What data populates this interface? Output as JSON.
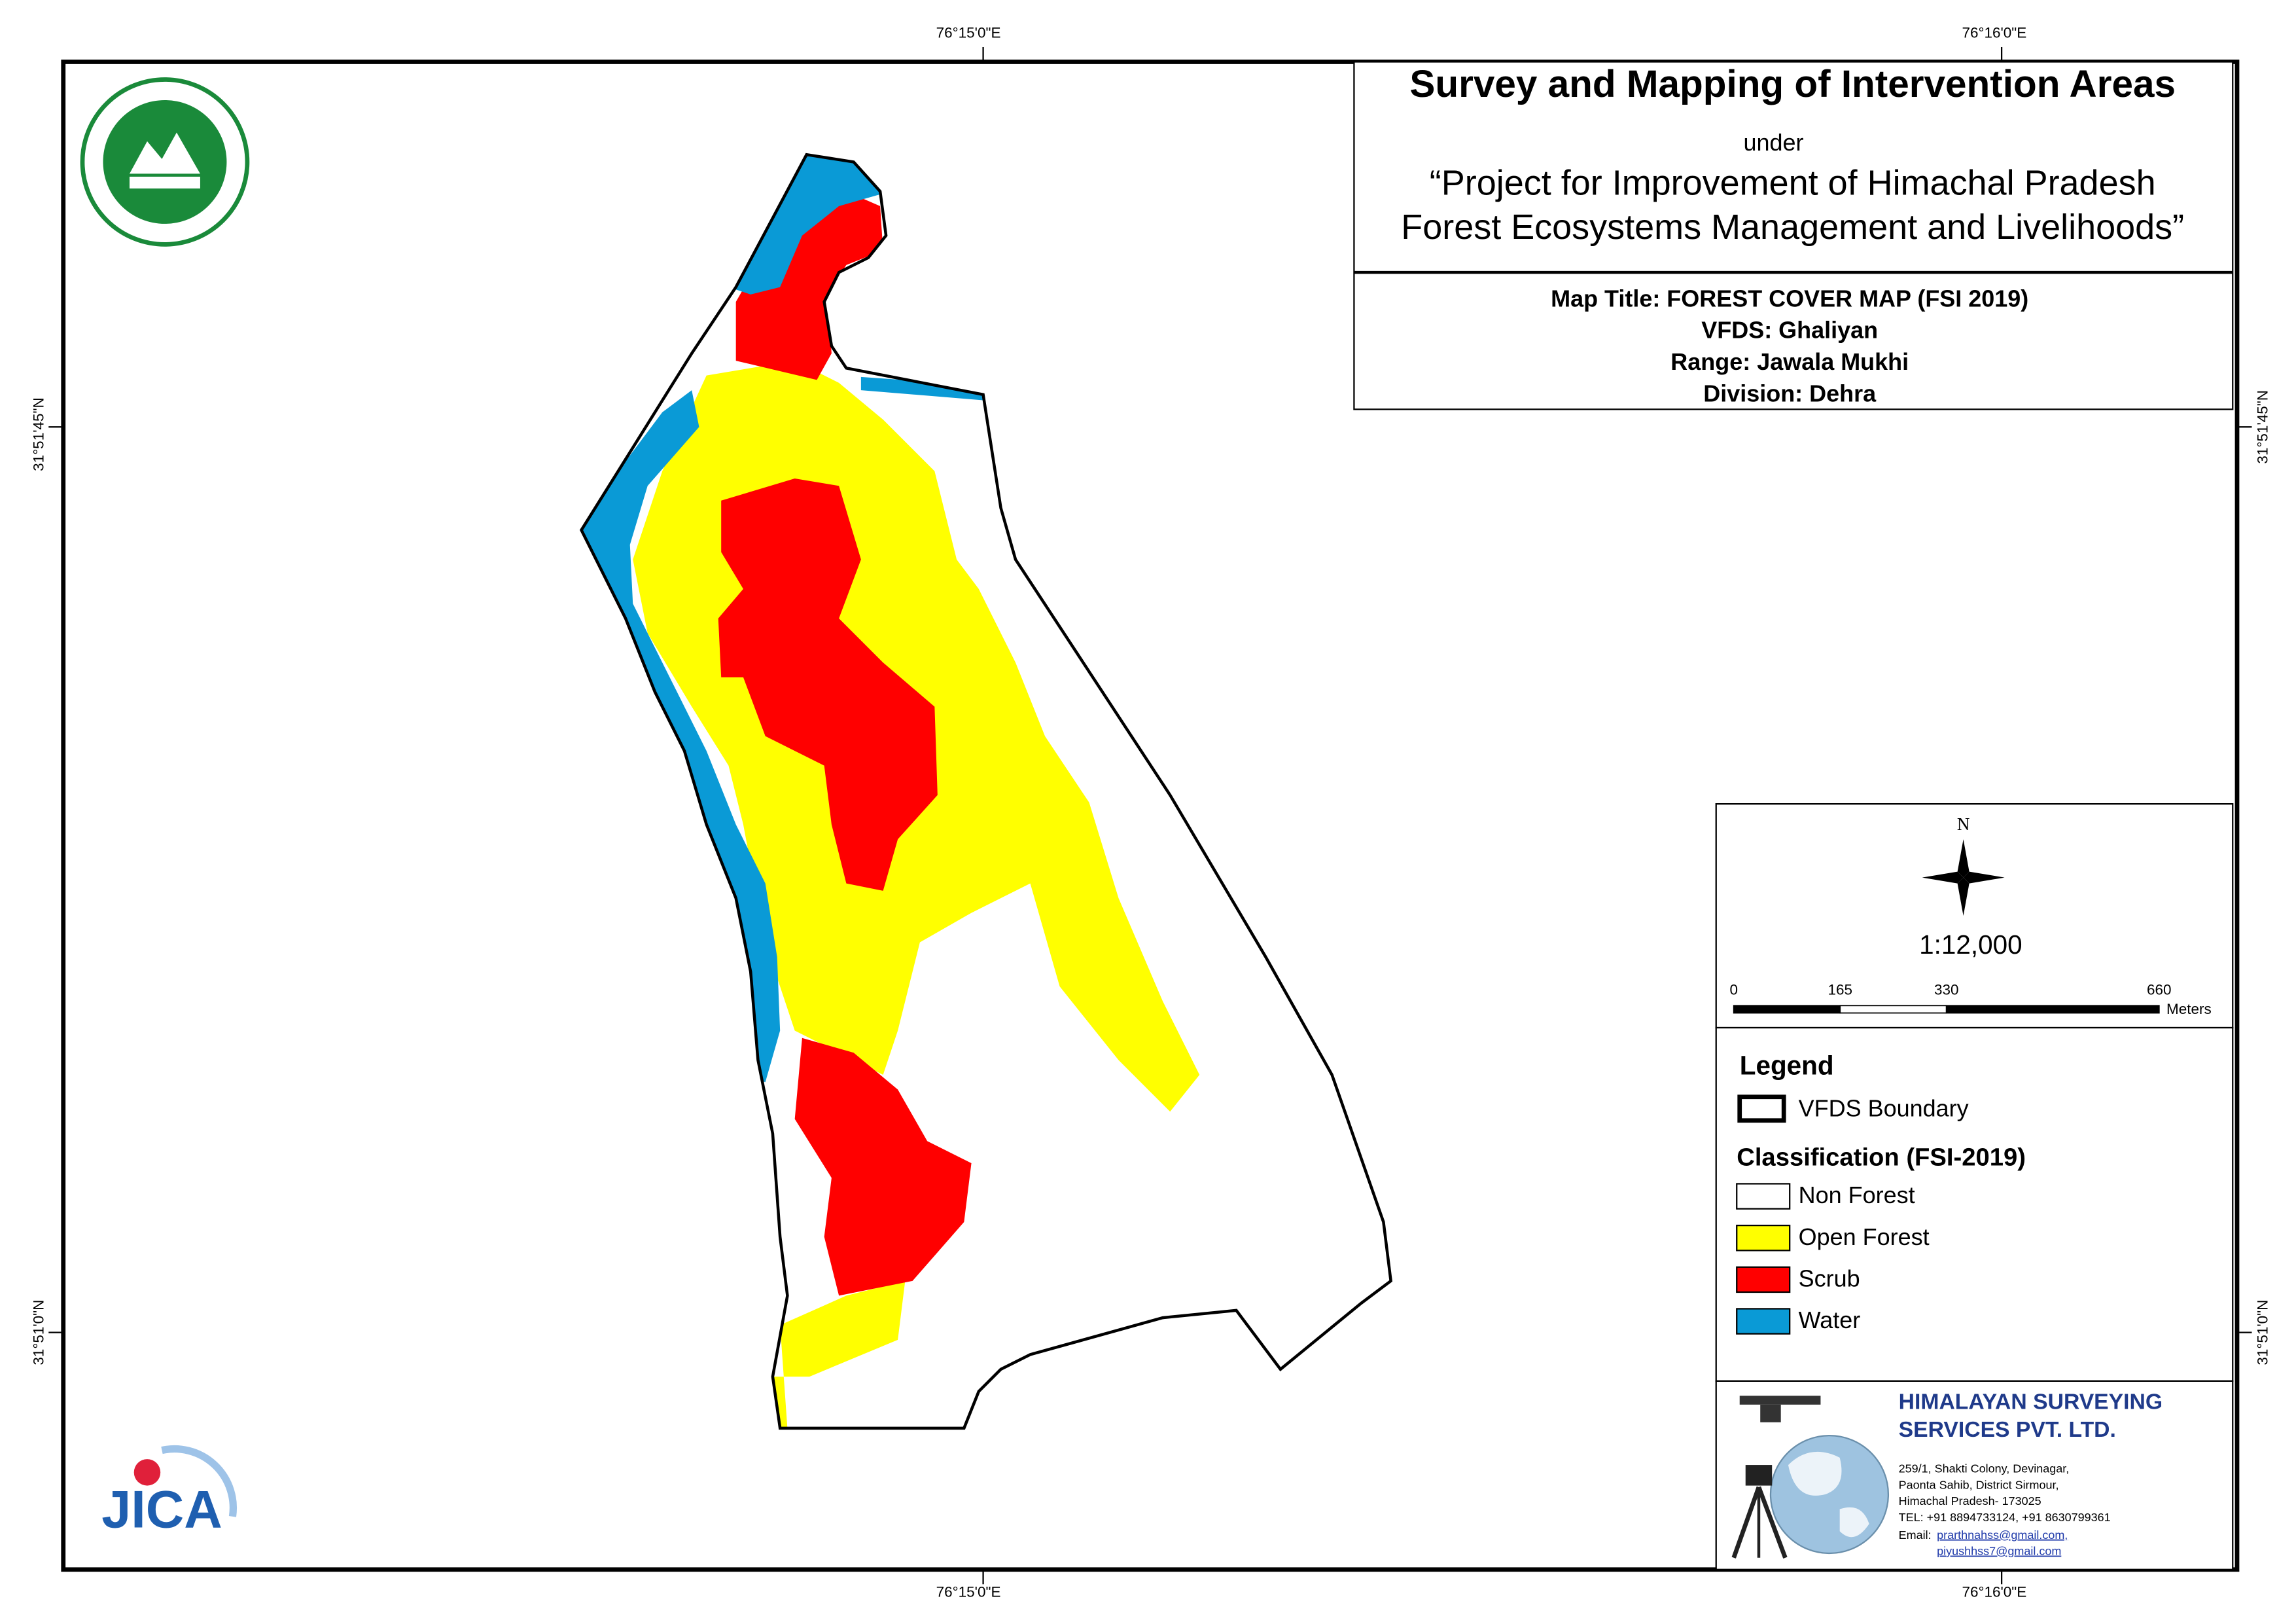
{
  "header": {
    "title": "Survey and Mapping of Intervention Areas",
    "under": "under",
    "project_line1": "“Project for Improvement of Himachal Pradesh",
    "project_line2": "Forest Ecosystems Management and Livelihoods”"
  },
  "map_info": [
    "Map Title: FOREST COVER MAP (FSI 2019)",
    "VFDS: Ghaliyan",
    "Range: Jawala Mukhi",
    "Division: Dehra"
  ],
  "coordinates": {
    "top": [
      "76°15'0\"E",
      "76°16'0\"E"
    ],
    "bottom": [
      "76°15'0\"E",
      "76°16'0\"E"
    ],
    "left": [
      "31°51'45\"N",
      "31°51'0\"N"
    ],
    "right": [
      "31°51'45\"N",
      "31°51'0\"N"
    ]
  },
  "north": "N",
  "scale": "1:12,000",
  "scale_bar": {
    "ticks": [
      0,
      165,
      330,
      660
    ],
    "unit": "Meters"
  },
  "legend": {
    "title": "Legend",
    "boundary": "VFDS Boundary",
    "classification_title": "Classification (FSI-2019)",
    "classes": [
      {
        "label": "Non Forest",
        "color": "#ffffff"
      },
      {
        "label": "Open Forest",
        "color": "#ffff00"
      },
      {
        "label": "Scrub",
        "color": "#ff0000"
      },
      {
        "label": "Water",
        "color": "#0a9ad6"
      }
    ]
  },
  "company": {
    "name_line1": "HIMALAYAN SURVEYING",
    "name_line2": "SERVICES PVT. LTD.",
    "address": [
      "259/1, Shakti Colony, Devinagar,",
      "Paonta Sahib, District Sirmour,",
      "Himachal Pradesh- 173025",
      "TEL: +91 8894733124, +91 8630799361"
    ],
    "email_label": "Email:",
    "emails": [
      "prarthnahss@gmail.com,",
      "piyushhss7@gmail.com"
    ]
  },
  "logos": {
    "jica": "JICA"
  }
}
